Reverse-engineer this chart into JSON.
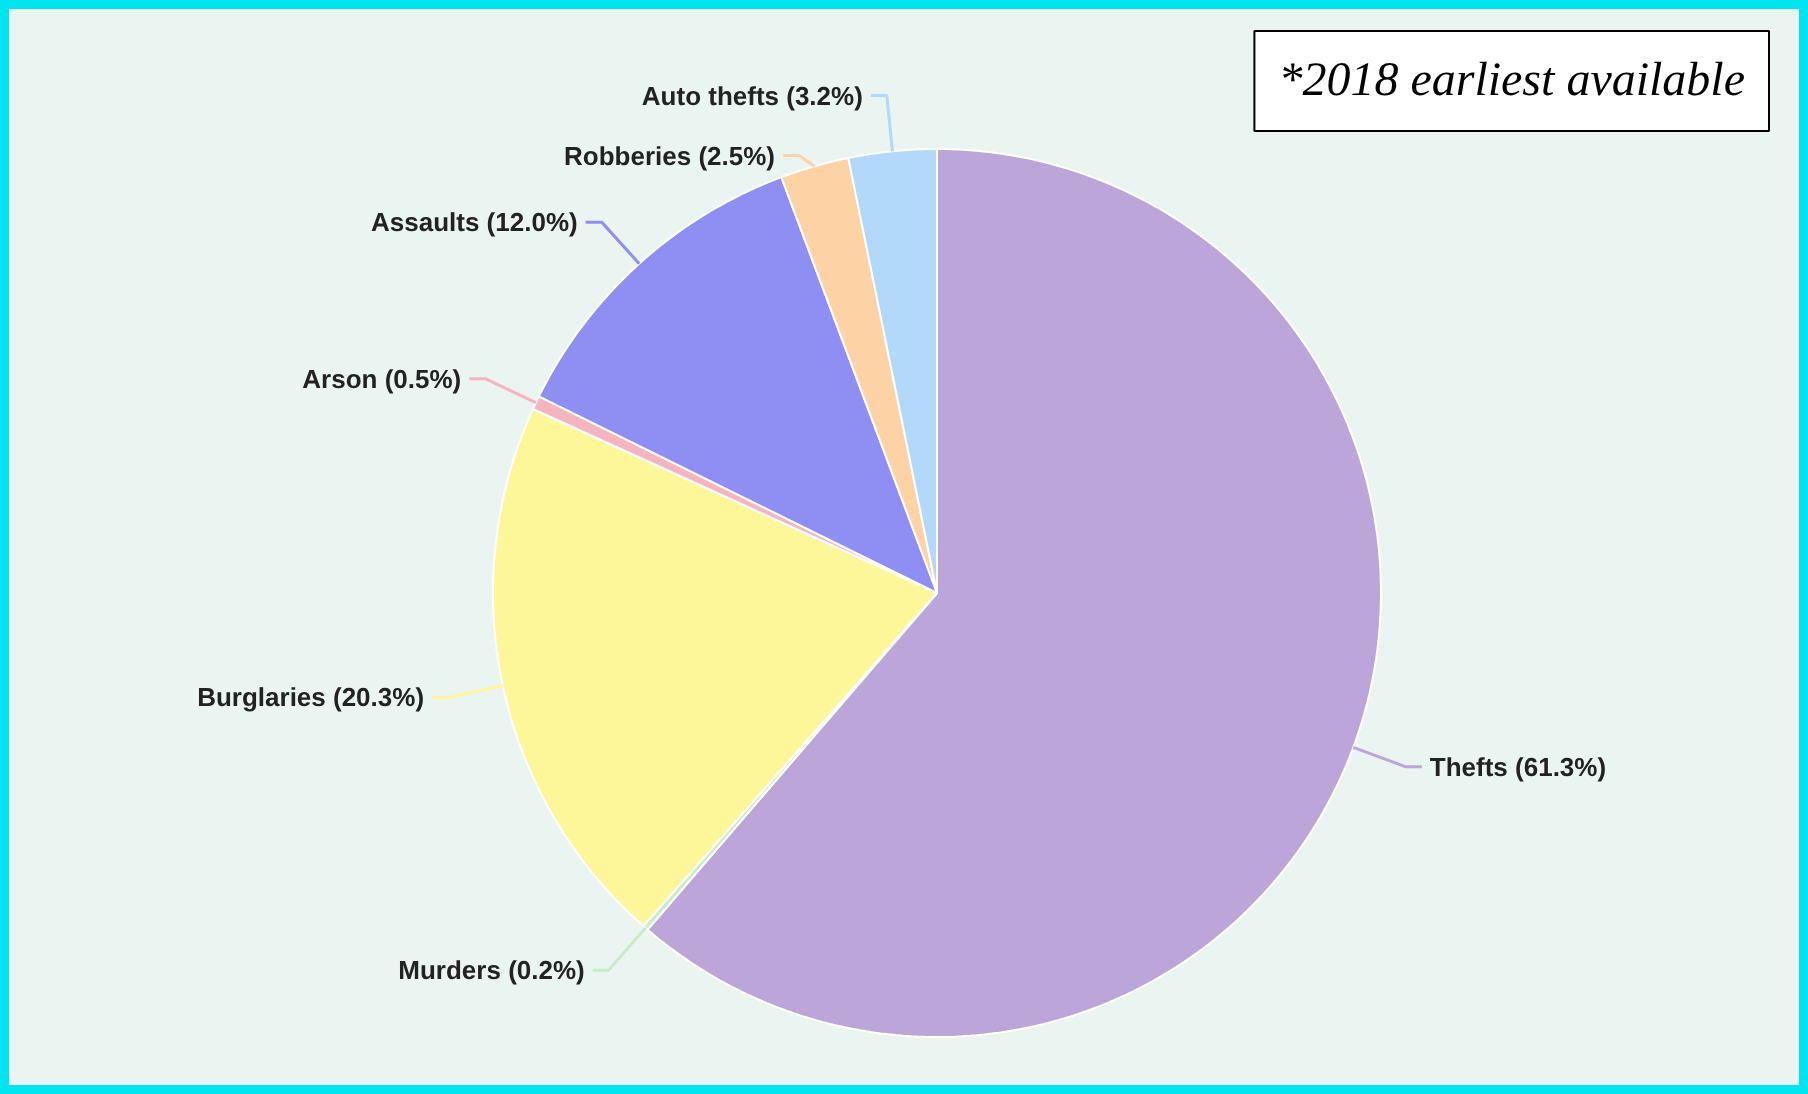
{
  "chart_data": {
    "type": "pie",
    "categories": [
      "Thefts (61.3%)",
      "Murders (0.2%)",
      "Burglaries (20.3%)",
      "Arson (0.5%)",
      "Assaults (12.0%)",
      "Robberies (2.5%)",
      "Auto thefts (3.2%)"
    ],
    "values": [
      61.3,
      0.2,
      20.3,
      0.5,
      12.0,
      2.5,
      3.2
    ],
    "colors": [
      "#bca6d9",
      "#c8ecc4",
      "#fdf79a",
      "#f5b5c0",
      "#8f8ef2",
      "#fdd3a6",
      "#b2d8fa"
    ],
    "annotations": [
      "*2018 earliest available"
    ]
  }
}
